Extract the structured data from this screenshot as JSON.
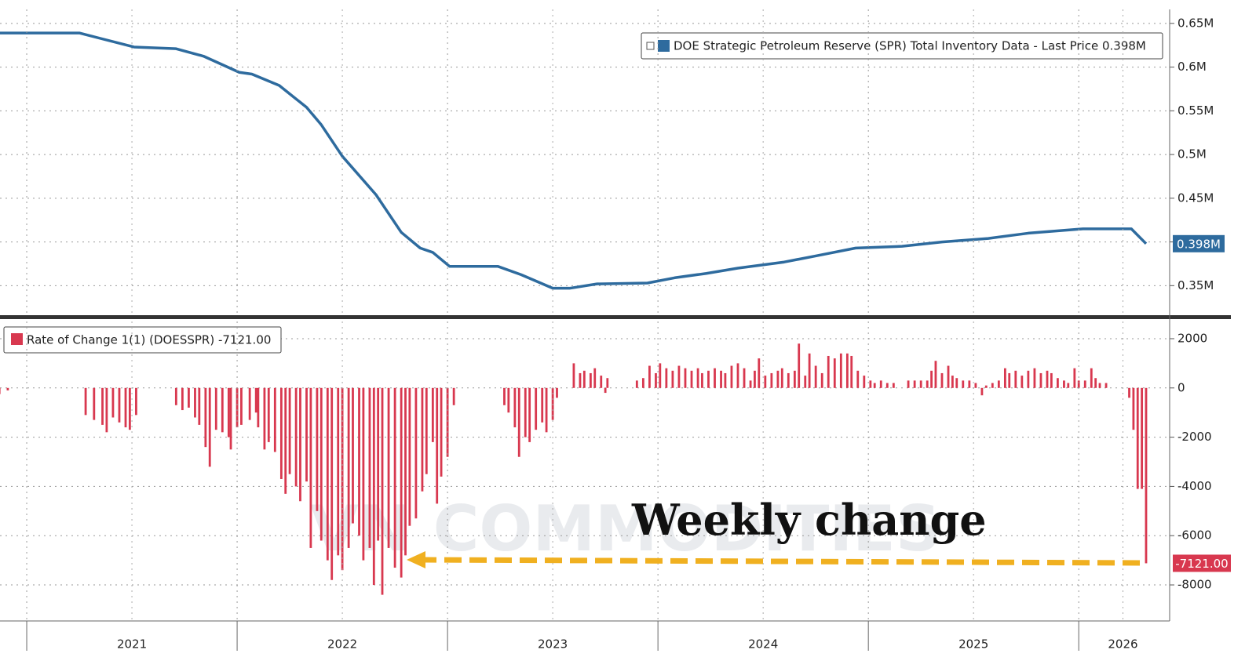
{
  "chart_data": [
    {
      "type": "line",
      "series": [
        {
          "name": "DOE Strategic Petroleum Reserve (SPR) Total Inventory Data - Last Price 0.398M",
          "color": "#2e6b9e",
          "x": [
            2020.87,
            2021.25,
            2021.51,
            2021.71,
            2021.84,
            2022.01,
            2022.07,
            2022.2,
            2022.33,
            2022.4,
            2022.5,
            2022.66,
            2022.78,
            2022.87,
            2022.93,
            2023.01,
            2023.24,
            2023.35,
            2023.5,
            2023.58,
            2023.71,
            2023.95,
            2024.08,
            2024.23,
            2024.38,
            2024.6,
            2024.75,
            2024.94,
            2025.16,
            2025.35,
            2025.57,
            2025.76,
            2026.02,
            2026.25,
            2026.32
          ],
          "values": [
            0.639,
            0.639,
            0.623,
            0.621,
            0.6125,
            0.594,
            0.592,
            0.579,
            0.554,
            0.534,
            0.498,
            0.454,
            0.411,
            0.393,
            0.388,
            0.372,
            0.372,
            0.3625,
            0.347,
            0.347,
            0.352,
            0.353,
            0.359,
            0.364,
            0.37,
            0.377,
            0.384,
            0.393,
            0.395,
            0.4,
            0.404,
            0.41,
            0.415,
            0.415,
            0.398
          ],
          "last_label": "0.398M"
        }
      ],
      "xlim": [
        2020.873,
        2026.432
      ],
      "ylim": [
        0.318,
        0.666
      ],
      "yticks": [
        {
          "value": 0.35,
          "label": "0.35M"
        },
        {
          "value": 0.4,
          "label": "0.4M"
        },
        {
          "value": 0.45,
          "label": "0.45M"
        },
        {
          "value": 0.5,
          "label": "0.5M"
        },
        {
          "value": 0.55,
          "label": "0.55M"
        },
        {
          "value": 0.6,
          "label": "0.6M"
        },
        {
          "value": 0.65,
          "label": "0.65M"
        }
      ],
      "grid": true
    },
    {
      "type": "bar",
      "series": [
        {
          "name": "Rate of Change 1(1) (DOESSPR) -7121.00",
          "color": "#d8384f",
          "x": [
            2020.87,
            2020.91,
            2021.28,
            2021.32,
            2021.36,
            2021.38,
            2021.41,
            2021.44,
            2021.47,
            2021.49,
            2021.52,
            2021.71,
            2021.74,
            2021.77,
            2021.8,
            2021.82,
            2021.85,
            2021.87,
            2021.9,
            2021.93,
            2021.96,
            2021.97,
            2022.0,
            2022.02,
            2022.06,
            2022.09,
            2022.1,
            2022.13,
            2022.15,
            2022.18,
            2022.21,
            2022.23,
            2022.25,
            2022.28,
            2022.3,
            2022.33,
            2022.35,
            2022.38,
            2022.4,
            2022.43,
            2022.45,
            2022.48,
            2022.5,
            2022.53,
            2022.55,
            2022.58,
            2022.6,
            2022.63,
            2022.65,
            2022.67,
            2022.69,
            2022.72,
            2022.75,
            2022.78,
            2022.8,
            2022.82,
            2022.85,
            2022.88,
            2022.9,
            2022.93,
            2022.95,
            2022.97,
            2023.0,
            2023.03,
            2023.27,
            2023.29,
            2023.32,
            2023.34,
            2023.37,
            2023.39,
            2023.42,
            2023.45,
            2023.47,
            2023.5,
            2023.52,
            2023.6,
            2023.63,
            2023.65,
            2023.68,
            2023.7,
            2023.73,
            2023.75,
            2023.76,
            2023.9,
            2023.93,
            2023.96,
            2023.99,
            2024.01,
            2024.04,
            2024.07,
            2024.1,
            2024.13,
            2024.16,
            2024.19,
            2024.21,
            2024.24,
            2024.27,
            2024.3,
            2024.32,
            2024.35,
            2024.38,
            2024.41,
            2024.44,
            2024.46,
            2024.48,
            2024.51,
            2024.54,
            2024.57,
            2024.59,
            2024.62,
            2024.65,
            2024.67,
            2024.7,
            2024.72,
            2024.75,
            2024.78,
            2024.81,
            2024.84,
            2024.87,
            2024.9,
            2024.92,
            2024.95,
            2024.98,
            2025.01,
            2025.03,
            2025.06,
            2025.09,
            2025.12,
            2025.19,
            2025.22,
            2025.25,
            2025.28,
            2025.3,
            2025.32,
            2025.35,
            2025.38,
            2025.4,
            2025.42,
            2025.45,
            2025.48,
            2025.51,
            2025.54,
            2025.56,
            2025.59,
            2025.62,
            2025.65,
            2025.67,
            2025.7,
            2025.73,
            2025.76,
            2025.79,
            2025.82,
            2025.85,
            2025.87,
            2025.9,
            2025.93,
            2025.95,
            2025.98,
            2026.0,
            2026.03,
            2026.06,
            2026.08,
            2026.1,
            2026.13,
            2026.24,
            2026.26,
            2026.28,
            2026.3,
            2026.32
          ],
          "values": [
            -250,
            -100,
            -1100,
            -1300,
            -1500,
            -1800,
            -1200,
            -1400,
            -1600,
            -1700,
            -1100,
            -700,
            -900,
            -800,
            -1200,
            -1500,
            -2400,
            -3200,
            -1700,
            -1800,
            -2000,
            -2500,
            -1600,
            -1500,
            -1300,
            -1000,
            -1600,
            -2500,
            -2200,
            -2600,
            -3700,
            -4300,
            -3500,
            -4000,
            -4600,
            -3800,
            -6500,
            -5000,
            -6200,
            -7000,
            -7800,
            -6800,
            -7400,
            -6500,
            -5500,
            -6000,
            -7000,
            -6500,
            -8000,
            -6200,
            -8400,
            -6500,
            -7300,
            -7700,
            -6800,
            -5600,
            -5300,
            -4200,
            -3500,
            -2200,
            -4700,
            -3600,
            -2800,
            -700,
            -700,
            -1000,
            -1600,
            -2800,
            -2000,
            -2200,
            -1700,
            -1400,
            -1800,
            -1300,
            -400,
            1000,
            600,
            700,
            600,
            800,
            500,
            -200,
            400,
            300,
            400,
            900,
            600,
            1000,
            800,
            700,
            900,
            800,
            700,
            800,
            600,
            700,
            800,
            700,
            600,
            900,
            1000,
            800,
            300,
            700,
            1200,
            500,
            600,
            700,
            800,
            600,
            700,
            1800,
            500,
            1400,
            900,
            600,
            1300,
            1200,
            1400,
            1400,
            1300,
            700,
            500,
            300,
            200,
            300,
            200,
            200,
            300,
            300,
            300,
            300,
            700,
            1100,
            600,
            900,
            500,
            400,
            300,
            300,
            200,
            -300,
            100,
            200,
            300,
            800,
            600,
            700,
            500,
            700,
            800,
            600,
            700,
            600,
            400,
            300,
            200,
            800,
            300,
            300,
            800,
            400,
            200,
            200,
            -400,
            -1700,
            -4100,
            -4100,
            -7121
          ],
          "last_label": "-7121.00"
        }
      ],
      "xlim": [
        2020.873,
        2026.432
      ],
      "ylim": [
        -9400,
        2700
      ],
      "yticks": [
        -8000,
        -6000,
        -4000,
        -2000,
        0,
        2000
      ],
      "xticks": [
        {
          "value": 2021.5,
          "label": "2021"
        },
        {
          "value": 2022.5,
          "label": "2022"
        },
        {
          "value": 2023.5,
          "label": "2023"
        },
        {
          "value": 2024.5,
          "label": "2024"
        },
        {
          "value": 2025.5,
          "label": "2025"
        },
        {
          "value": 2026.21,
          "label": "2026"
        }
      ],
      "year_starts": [
        2021,
        2022,
        2023,
        2024,
        2025,
        2026
      ],
      "grid": true,
      "annotation": "Weekly change",
      "watermark": "VN COMMODITIES"
    }
  ]
}
